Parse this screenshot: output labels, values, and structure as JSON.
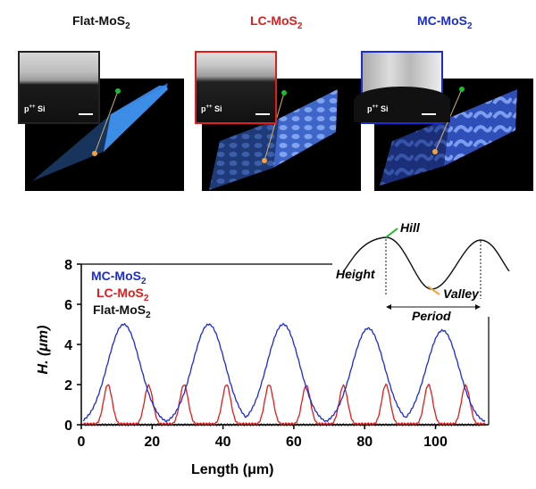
{
  "panels": [
    {
      "title_main": "Flat-MoS",
      "title_sub": "2",
      "inset_label_main": "p",
      "inset_label_sup": "++",
      "inset_label_rest": " Si"
    },
    {
      "title_main": "LC-MoS",
      "title_sub": "2",
      "inset_label_main": "p",
      "inset_label_sup": "++",
      "inset_label_rest": " Si"
    },
    {
      "title_main": "MC-MoS",
      "title_sub": "2",
      "inset_label_main": "p",
      "inset_label_sup": "++",
      "inset_label_rest": " Si"
    }
  ],
  "schematic": {
    "hill_label": "Hill",
    "valley_label": "Valley",
    "height_label": "Height",
    "period_label": "Period"
  },
  "colors": {
    "mc": "#1a2bd8",
    "lc": "#e21b1b",
    "flat": "#111111",
    "accent_green": "#1bbd2c",
    "accent_orange": "#f2a33a"
  },
  "chart_data": {
    "type": "line",
    "xlabel": "Length (μm)",
    "ylabel": "H. (μm)",
    "xlim": [
      0,
      115
    ],
    "ylim": [
      0,
      8
    ],
    "xticks": [
      0,
      20,
      40,
      60,
      80,
      100
    ],
    "yticks": [
      0,
      2,
      4,
      6,
      8
    ],
    "legend_position": "top-left",
    "series": [
      {
        "name": "MC-MoS",
        "name_sub": "2",
        "color": "#1a2bd8",
        "peak_positions": [
          12,
          36,
          57,
          81,
          102
        ],
        "peak_heights": [
          5.0,
          5.0,
          5.0,
          4.8,
          4.7
        ],
        "width": 4.6,
        "baseline": 0.05
      },
      {
        "name": "LC-MoS",
        "name_sub": "2",
        "color": "#e21b1b",
        "peak_positions": [
          7.5,
          19,
          29,
          41,
          53,
          63.5,
          74,
          86,
          98,
          108.5
        ],
        "peak_heights": [
          2.0,
          1.95,
          2.0,
          2.0,
          2.0,
          1.95,
          1.95,
          2.0,
          2.0,
          1.95
        ],
        "width": 1.2,
        "baseline": 0.05
      },
      {
        "name": "Flat-MoS",
        "name_sub": "2",
        "color": "#111111",
        "peak_positions": [],
        "peak_heights": [],
        "width": 1,
        "baseline": 0.0
      }
    ]
  }
}
